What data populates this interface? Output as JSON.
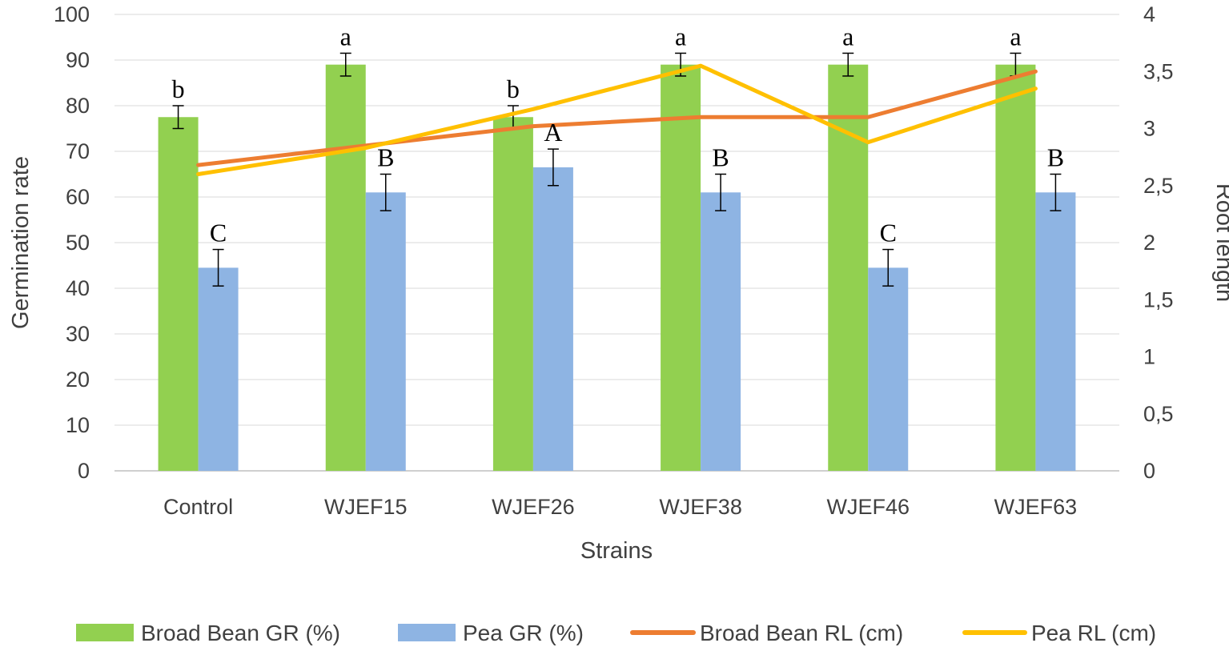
{
  "chart_data": {
    "type": "bar",
    "categories": [
      "Control",
      "WJEF15",
      "WJEF26",
      "WJEF38",
      "WJEF46",
      "WJEF63"
    ],
    "xlabel": "Strains",
    "ylabel": "Germination rate",
    "y2label": "Root length",
    "ylim": [
      0,
      100
    ],
    "y2lim": [
      0,
      4
    ],
    "yticks": [
      "0",
      "10",
      "20",
      "30",
      "40",
      "50",
      "60",
      "70",
      "80",
      "90",
      "100"
    ],
    "y2ticks": [
      "0",
      "0,5",
      "1",
      "1,5",
      "2",
      "2,5",
      "3",
      "3,5",
      "4"
    ],
    "grid": true,
    "legend_position": "bottom",
    "bar_series": [
      {
        "name": "Broad Bean GR (%)",
        "color": "#92d050",
        "values": [
          77.5,
          89,
          77.5,
          89,
          89,
          89
        ],
        "errors": [
          2.5,
          2.5,
          2.5,
          2.5,
          2.5,
          2.5
        ],
        "letters": [
          "b",
          "a",
          "b",
          "a",
          "a",
          "a"
        ]
      },
      {
        "name": "Pea GR (%)",
        "color": "#8eb4e3",
        "values": [
          44.5,
          61,
          66.5,
          61,
          44.5,
          61
        ],
        "errors": [
          4,
          4,
          4,
          4,
          4,
          4
        ],
        "letters": [
          "C",
          "B",
          "A",
          "B",
          "C",
          "B"
        ]
      }
    ],
    "line_series": [
      {
        "name": "Broad Bean RL (cm)",
        "color": "#ed7d31",
        "axis": "right",
        "values": [
          2.68,
          2.85,
          3.02,
          3.1,
          3.1,
          3.5
        ]
      },
      {
        "name": "Pea RL (cm)",
        "color": "#ffc000",
        "axis": "right",
        "values": [
          2.6,
          2.83,
          3.17,
          3.55,
          2.88,
          3.35
        ]
      }
    ]
  }
}
